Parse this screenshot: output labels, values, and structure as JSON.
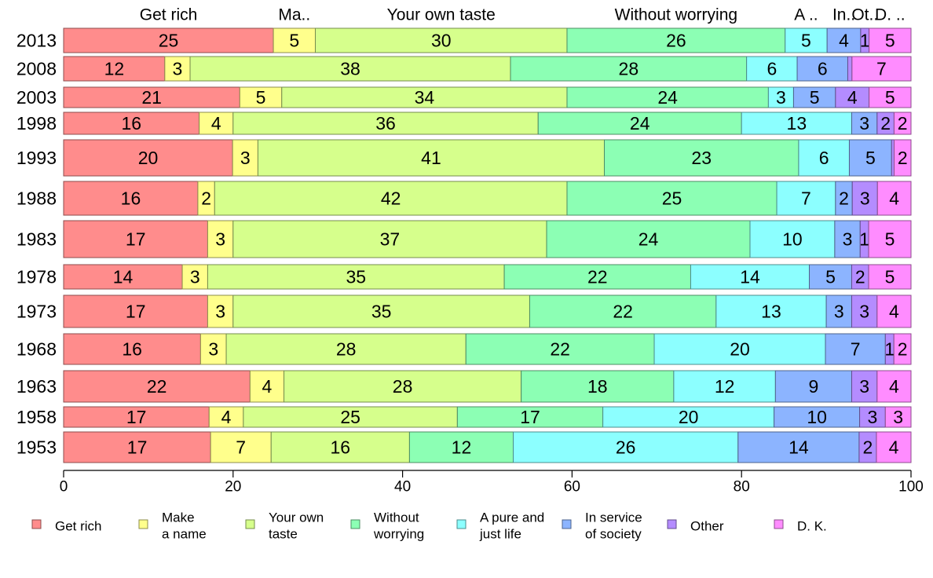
{
  "chart_data": {
    "type": "bar",
    "orientation": "horizontal",
    "stacked": true,
    "categories": [
      "2013",
      "2008",
      "2003",
      "1998",
      "1993",
      "1988",
      "1983",
      "1978",
      "1973",
      "1968",
      "1963",
      "1958",
      "1953"
    ],
    "series": [
      {
        "name": "Get rich",
        "legend_label": "Get rich",
        "top_label": "Get rich",
        "color": "#ff8c8c",
        "values": [
          25,
          12,
          21,
          16,
          20,
          16,
          17,
          14,
          17,
          16,
          22,
          17,
          17
        ]
      },
      {
        "name": "Make a name",
        "legend_label": "Make\na name",
        "top_label": "Ma..",
        "color": "#ffff8c",
        "values": [
          5,
          3,
          5,
          4,
          3,
          2,
          3,
          3,
          3,
          3,
          4,
          4,
          7
        ]
      },
      {
        "name": "Your own taste",
        "legend_label": "Your own\ntaste",
        "top_label": "Your own taste",
        "color": "#d6ff8c",
        "values": [
          30,
          38,
          34,
          36,
          41,
          42,
          37,
          35,
          35,
          28,
          28,
          25,
          16
        ]
      },
      {
        "name": "Without worrying",
        "legend_label": "Without\nworrying",
        "top_label": "Without worrying",
        "color": "#8cffb4",
        "values": [
          26,
          28,
          24,
          24,
          23,
          25,
          24,
          22,
          22,
          22,
          18,
          17,
          12
        ]
      },
      {
        "name": "A pure and just life",
        "legend_label": "A pure and\njust life",
        "top_label": "A ..",
        "color": "#8cffff",
        "values": [
          5,
          6,
          3,
          13,
          6,
          7,
          10,
          14,
          13,
          20,
          12,
          20,
          26
        ]
      },
      {
        "name": "In service of society",
        "legend_label": "In service\nof society",
        "top_label": "In..",
        "color": "#8cb4ff",
        "values": [
          4,
          6,
          5,
          3,
          5,
          2,
          3,
          5,
          3,
          7,
          9,
          10,
          14
        ]
      },
      {
        "name": "Other",
        "legend_label": "Other",
        "top_label": "Ot..",
        "color": "#b48cff",
        "values": [
          1,
          0.5,
          4,
          2,
          0.3,
          3,
          1,
          2,
          3,
          1,
          3,
          3,
          2
        ]
      },
      {
        "name": "D. K.",
        "legend_label": "D. K.",
        "top_label": "D. ..",
        "color": "#ff8cff",
        "values": [
          5,
          7,
          5,
          2,
          2,
          4,
          5,
          5,
          4,
          2,
          4,
          3,
          4
        ]
      }
    ],
    "data_labels": [
      [
        "25",
        "5",
        "30",
        "26",
        "5",
        "4",
        "1",
        "5"
      ],
      [
        "12",
        "3",
        "38",
        "28",
        "6",
        "6",
        "",
        "7"
      ],
      [
        "21",
        "5",
        "34",
        "24",
        "3",
        "5",
        "4",
        "5"
      ],
      [
        "16",
        "4",
        "36",
        "24",
        "13",
        "3",
        "2",
        "2"
      ],
      [
        "20",
        "3",
        "41",
        "23",
        "6",
        "5",
        "",
        "2"
      ],
      [
        "16",
        "2",
        "42",
        "25",
        "7",
        "2",
        "3",
        "4"
      ],
      [
        "17",
        "3",
        "37",
        "24",
        "10",
        "3",
        "1",
        "5"
      ],
      [
        "14",
        "3",
        "35",
        "22",
        "14",
        "5",
        "2",
        "5"
      ],
      [
        "17",
        "3",
        "35",
        "22",
        "13",
        "3",
        "3",
        "4"
      ],
      [
        "16",
        "3",
        "28",
        "22",
        "20",
        "7",
        "1",
        "2"
      ],
      [
        "22",
        "4",
        "28",
        "18",
        "12",
        "9",
        "3",
        "4"
      ],
      [
        "17",
        "4",
        "25",
        "17",
        "20",
        "10",
        "3",
        "3"
      ],
      [
        "17",
        "7",
        "16",
        "12",
        "26",
        "14",
        "2",
        "4"
      ]
    ],
    "xlim": [
      0,
      100
    ],
    "xticks": [
      "0",
      "20",
      "40",
      "60",
      "80",
      "100"
    ],
    "legend_position": "bottom",
    "grid": false
  }
}
